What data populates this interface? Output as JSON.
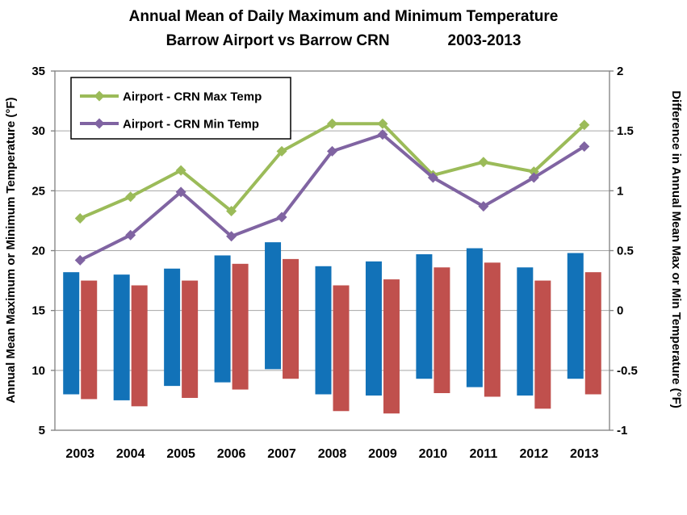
{
  "title": {
    "line1": "Annual Mean of Daily Maximum and Minimum Temperature",
    "line2_left": "Barrow Airport vs Barrow CRN",
    "line2_right": "2003-2013"
  },
  "legend": {
    "items": [
      {
        "label": "Airport - CRN Max Temp",
        "color": "#9BBB59"
      },
      {
        "label": "Airport - CRN Min Temp",
        "color": "#8064A2"
      }
    ]
  },
  "colors": {
    "blue_bar": "#1272B8",
    "red_bar": "#C0504D",
    "green_line": "#9BBB59",
    "purple_line": "#8064A2",
    "gridline": "#A6A6A6",
    "axis_line": "#808080",
    "text": "#000000"
  },
  "chart_data": {
    "type": "combo-bar-line",
    "categories": [
      "2003",
      "2004",
      "2005",
      "2006",
      "2007",
      "2008",
      "2009",
      "2010",
      "2011",
      "2012",
      "2013"
    ],
    "left_axis": {
      "label": "Annual Mean Maximum or Minimum Temperature (°F)",
      "min": 5,
      "max": 35,
      "step": 5
    },
    "right_axis": {
      "label": "Difference in Annual Mean Max or Min Temperature (°F)",
      "min": -1,
      "max": 2,
      "step": 0.5
    },
    "bar_series": [
      {
        "id": "blue-bars",
        "color": "#1272B8",
        "axis": "left",
        "style": "floating range [min,max] in °F",
        "ranges": [
          [
            8.0,
            18.2
          ],
          [
            7.5,
            18.0
          ],
          [
            8.7,
            18.5
          ],
          [
            9.0,
            19.6
          ],
          [
            10.1,
            20.7
          ],
          [
            8.0,
            18.7
          ],
          [
            7.9,
            19.1
          ],
          [
            9.3,
            19.7
          ],
          [
            8.6,
            20.2
          ],
          [
            7.9,
            18.6
          ],
          [
            9.3,
            19.8
          ]
        ]
      },
      {
        "id": "red-bars",
        "color": "#C0504D",
        "axis": "left",
        "style": "floating range [min,max] in °F",
        "ranges": [
          [
            7.6,
            17.5
          ],
          [
            7.0,
            17.1
          ],
          [
            7.7,
            17.5
          ],
          [
            8.4,
            18.9
          ],
          [
            9.3,
            19.3
          ],
          [
            6.6,
            17.1
          ],
          [
            6.4,
            17.6
          ],
          [
            8.1,
            18.6
          ],
          [
            7.8,
            19.0
          ],
          [
            6.8,
            17.5
          ],
          [
            8.0,
            18.2
          ]
        ]
      }
    ],
    "line_series": [
      {
        "name": "Airport - CRN Max Temp",
        "color": "#9BBB59",
        "axis": "right",
        "marker": "diamond",
        "values": [
          0.77,
          0.95,
          1.17,
          0.83,
          1.33,
          1.56,
          1.56,
          1.13,
          1.24,
          1.16,
          1.55
        ]
      },
      {
        "name": "Airport - CRN Min Temp",
        "color": "#8064A2",
        "axis": "right",
        "marker": "diamond",
        "values": [
          0.42,
          0.63,
          0.99,
          0.62,
          0.78,
          1.33,
          1.47,
          1.11,
          0.87,
          1.11,
          1.37
        ]
      }
    ],
    "grid": "horizontal",
    "legend_position": "top-left-inside"
  }
}
